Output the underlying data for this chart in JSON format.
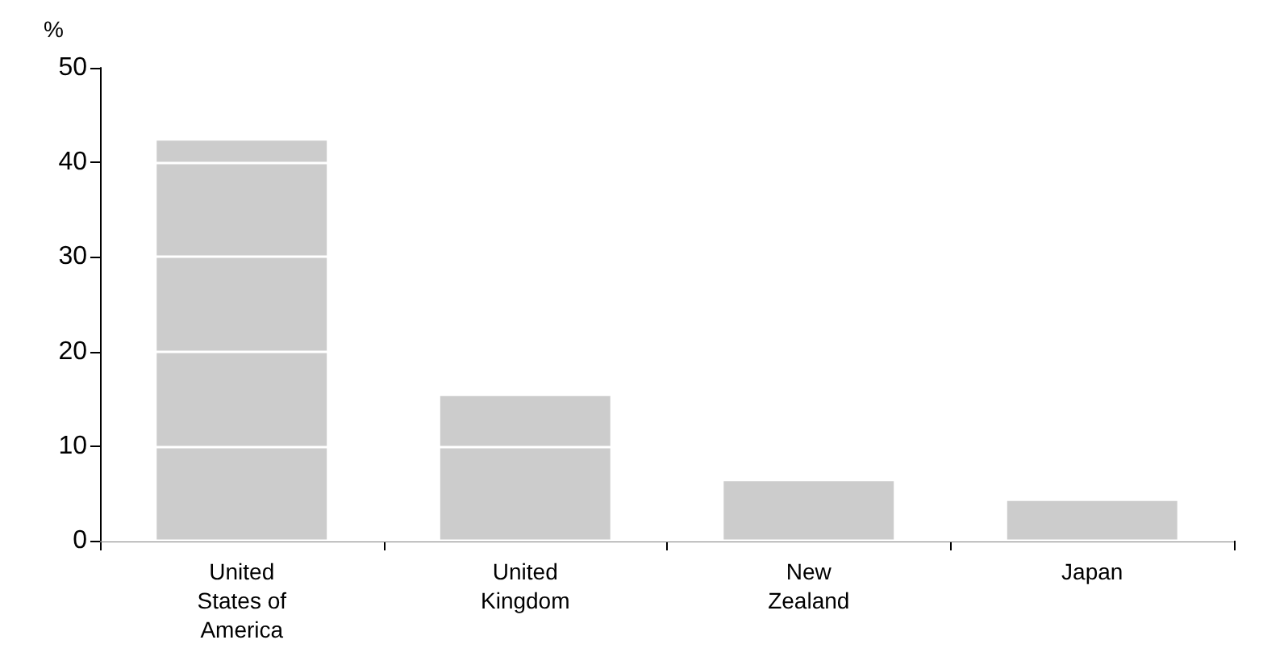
{
  "chart_data": {
    "type": "bar",
    "ylabel": "%",
    "categories": [
      "United\nStates of\nAmerica",
      "United\nKingdom",
      "New\nZealand",
      "Japan"
    ],
    "values": [
      42.3,
      15.3,
      6.3,
      4.2
    ],
    "color": "#cccccc",
    "ylim": [
      0,
      50
    ],
    "yticks": [
      0,
      10,
      20,
      30,
      40,
      50
    ],
    "grid": "y"
  }
}
